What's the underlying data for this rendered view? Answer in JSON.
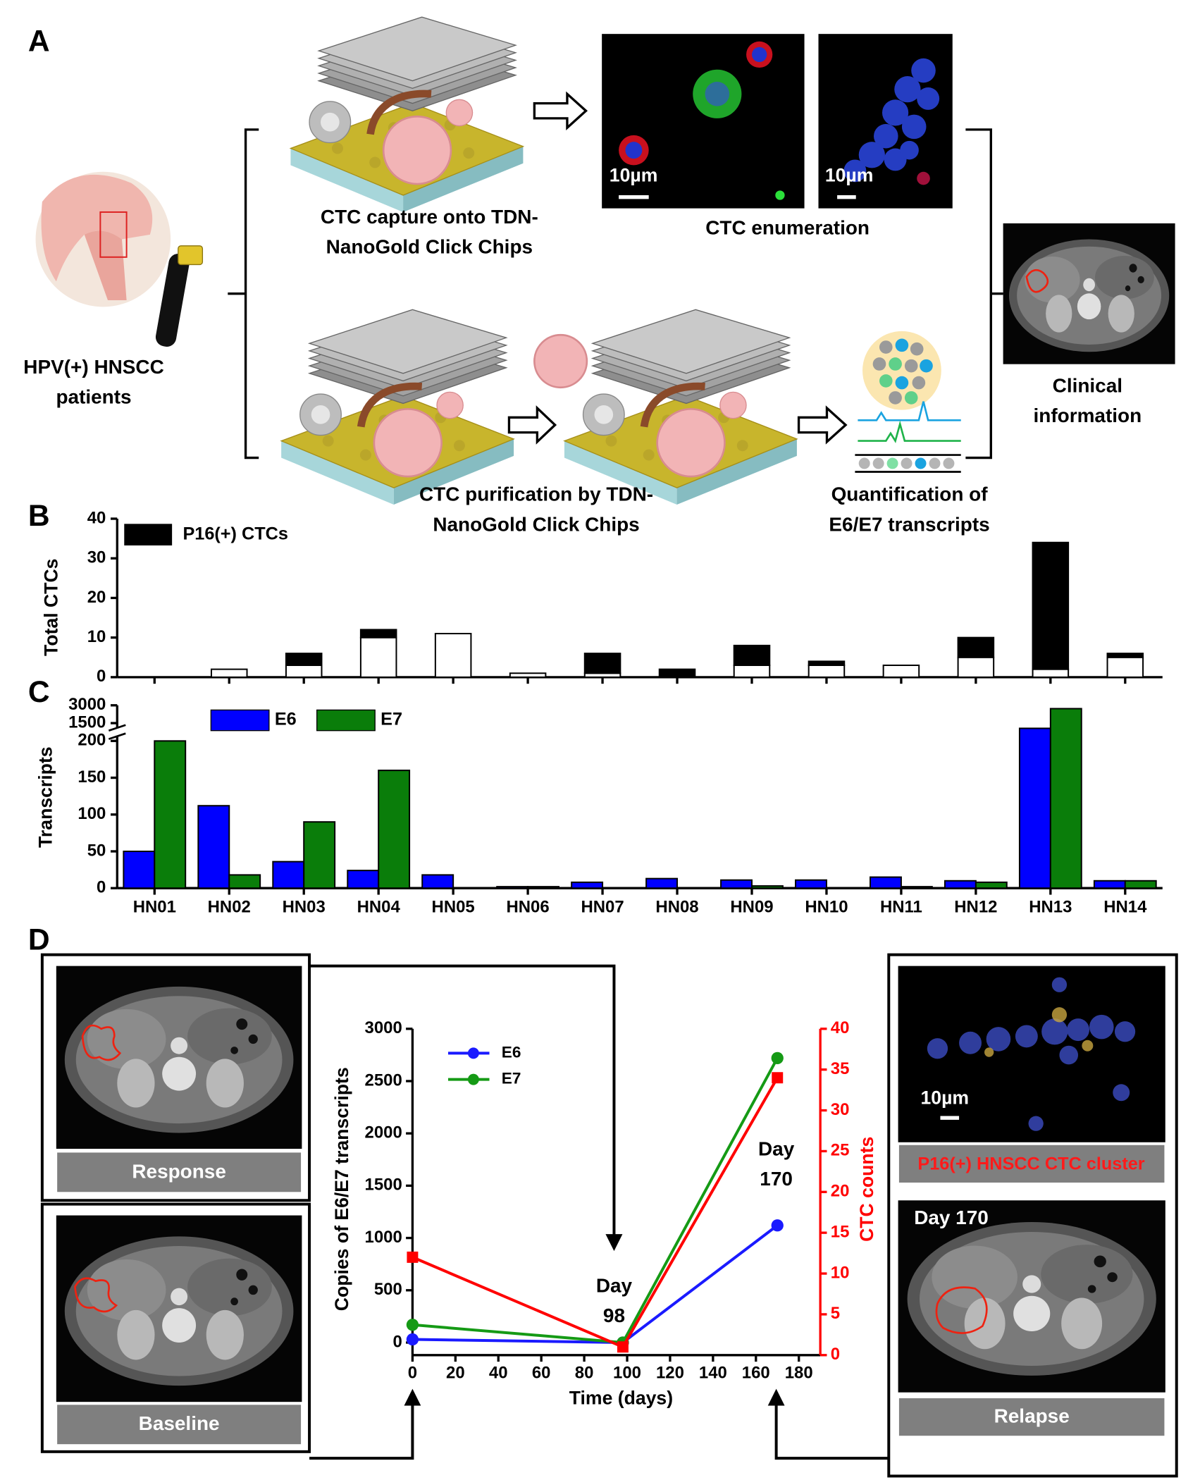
{
  "panel_labels": [
    "A",
    "B",
    "C",
    "D"
  ],
  "panel_a": {
    "patients": "HPV(+) HNSCC patients",
    "capture": "CTC capture onto TDN-NanoGold Click Chips",
    "scale_bars": [
      "10µm",
      "10µm"
    ],
    "enumeration": "CTC enumeration",
    "purification": "CTC purification by TDN-NanoGold Click Chips",
    "quantification": "Quantification of E6/E7 transcripts",
    "clinical": "Clinical information"
  },
  "chart_data": [
    {
      "type": "bar",
      "stacked": true,
      "ylabel": "Total CTCs",
      "ylim": [
        0,
        40
      ],
      "yticks": [
        0,
        10,
        20,
        30,
        40
      ],
      "legend": "upper left",
      "series": [
        {
          "color": "#ffffff",
          "values": [
            0,
            2,
            3,
            10,
            11,
            1,
            1,
            0,
            3,
            3,
            3,
            5,
            2,
            5
          ]
        },
        {
          "name": "P16(+) CTCs",
          "color": "#000000",
          "values": [
            0,
            0,
            3,
            2,
            0,
            0,
            5,
            2,
            5,
            1,
            0,
            5,
            32,
            1
          ]
        }
      ]
    },
    {
      "type": "bar",
      "categories": [
        "HN01",
        "HN02",
        "HN03",
        "HN04",
        "HN05",
        "HN06",
        "HN07",
        "HN08",
        "HN09",
        "HN10",
        "HN11",
        "HN12",
        "HN13",
        "HN14"
      ],
      "ylabel": "Transcripts",
      "ylim": [
        0,
        3000
      ],
      "ybreak": [
        200,
        1500
      ],
      "yticks": [
        0,
        50,
        100,
        150,
        200,
        1500,
        3000
      ],
      "legend": "upper left",
      "series": [
        {
          "name": "E6",
          "color": "#0000ff",
          "values": [
            50,
            112,
            36,
            24,
            18,
            2,
            8,
            13,
            11,
            11,
            15,
            10,
            1120,
            10
          ]
        },
        {
          "name": "E7",
          "color": "#0a7d0a",
          "values": [
            200,
            18,
            90,
            160,
            0,
            2,
            0,
            0,
            3,
            0,
            2,
            8,
            2720,
            10
          ]
        }
      ]
    },
    {
      "type": "line",
      "x": [
        0,
        98,
        170
      ],
      "xlabel": "Time (days)",
      "ylabel": "Copies of E6/E7 transcripts",
      "y2label": "CTC counts",
      "xlim": [
        0,
        190
      ],
      "xticks": [
        0,
        20,
        40,
        60,
        80,
        100,
        120,
        140,
        160,
        180
      ],
      "ylim": [
        -120,
        3000
      ],
      "yticks": [
        0,
        500,
        1000,
        1500,
        2000,
        2500,
        3000
      ],
      "y2lim": [
        0,
        40
      ],
      "y2ticks": [
        0,
        5,
        10,
        15,
        20,
        25,
        30,
        35,
        40
      ],
      "y2color": "#ff0000",
      "legend": "upper left",
      "series": [
        {
          "name": "E6",
          "color": "#1a1aff",
          "marker": "circle",
          "values": [
            30,
            0,
            1120
          ]
        },
        {
          "name": "E7",
          "color": "#159a15",
          "marker": "circle",
          "values": [
            170,
            0,
            2720
          ]
        },
        {
          "color": "#ff0000",
          "marker": "square",
          "axis": "y2",
          "values": [
            12,
            1,
            34
          ]
        }
      ],
      "annotations": [
        "Day 98",
        "Day 170"
      ]
    }
  ],
  "panel_d_images": {
    "response": "Response",
    "baseline": "Baseline",
    "cluster_scale": "10µm",
    "cluster": "P16(+) HNSCC CTC cluster",
    "relapse_day": "Day 170",
    "relapse": "Relapse"
  }
}
